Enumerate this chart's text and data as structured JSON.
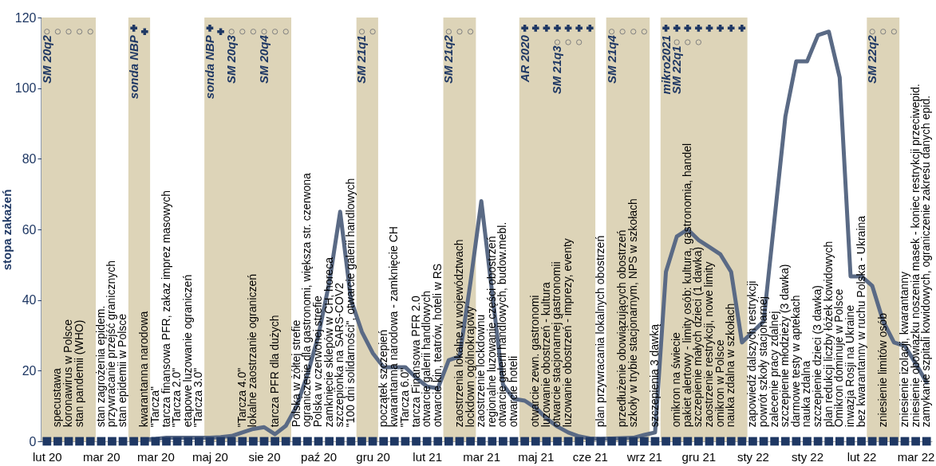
{
  "chart_data": {
    "type": "line",
    "ylabel": "stopa zakażeń",
    "categories": [
      "lut 20",
      null,
      null,
      null,
      null,
      "mar 20",
      null,
      null,
      null,
      null,
      "mar 20",
      null,
      null,
      null,
      null,
      "maj 20",
      null,
      null,
      null,
      null,
      "sie 20",
      null,
      null,
      null,
      null,
      "paź 20",
      null,
      null,
      null,
      null,
      "gru 20",
      null,
      null,
      null,
      null,
      "lut 21",
      null,
      null,
      null,
      null,
      "mar 21",
      null,
      null,
      null,
      null,
      "maj 21",
      null,
      null,
      null,
      null,
      "cze 21",
      null,
      null,
      null,
      null,
      "wrz 21",
      null,
      null,
      null,
      null,
      "gru 21",
      null,
      null,
      null,
      null,
      "sty 22",
      null,
      null,
      null,
      null,
      "sty 22",
      null,
      null,
      null,
      null,
      "lut 22",
      null,
      null,
      null,
      null,
      "mar 22",
      null
    ],
    "ylim": [
      0,
      120
    ],
    "yticks": [
      0,
      20,
      40,
      60,
      80,
      100,
      120
    ],
    "grid": false,
    "series": [
      {
        "type": "line",
        "color": "#5a6a85",
        "line_style": "solid",
        "values": [
          null,
          null,
          null,
          null,
          null,
          null,
          null,
          null,
          null,
          0.5,
          0.7,
          1,
          1,
          1,
          1,
          1,
          1.2,
          1.5,
          2.5,
          3.5,
          4,
          2,
          4.4,
          10,
          19,
          30,
          45,
          65,
          40,
          31,
          25,
          21,
          21,
          21,
          18,
          15.5,
          15,
          23,
          24,
          45,
          68,
          42,
          16,
          12,
          11.5,
          9.5,
          6.5,
          4.2,
          2.5,
          1.4,
          0.8,
          0.7,
          0.8,
          0.9,
          1,
          1.8,
          2.5,
          48,
          58,
          60,
          57,
          55,
          53,
          48,
          28,
          31,
          34,
          63,
          92,
          107.6,
          107.6,
          115,
          116,
          103,
          46.7,
          46.7,
          44,
          34,
          28,
          27,
          22,
          16.7
        ]
      },
      {
        "type": "scatter",
        "marker": "square",
        "color": "#1f3864",
        "values": [
          0,
          0,
          0,
          0,
          0,
          0,
          0,
          0,
          0,
          0,
          0,
          0,
          0,
          0,
          0,
          0,
          0,
          0,
          0,
          0,
          0,
          0,
          0,
          0,
          0,
          0,
          0,
          0,
          0,
          0,
          0,
          0,
          0,
          0,
          0,
          0,
          0,
          0,
          0,
          0,
          0,
          0,
          0,
          0,
          0,
          0,
          0,
          0,
          0,
          0,
          0,
          0,
          0,
          0,
          0,
          0,
          0,
          0,
          0,
          0,
          0,
          0,
          0,
          0,
          0,
          0,
          0,
          0,
          0,
          0,
          0,
          0,
          0,
          0,
          0,
          0,
          0,
          0,
          0,
          0,
          0,
          0
        ]
      },
      {
        "type": "scatter",
        "marker": "circle",
        "color": "#808080",
        "values": [
          116,
          116,
          116,
          116,
          116,
          null,
          null,
          null,
          null,
          null,
          null,
          null,
          null,
          null,
          null,
          null,
          null,
          116,
          116,
          116,
          116,
          116,
          116,
          null,
          null,
          null,
          null,
          null,
          null,
          116,
          116,
          null,
          null,
          null,
          null,
          null,
          null,
          116,
          116,
          116,
          null,
          null,
          null,
          null,
          null,
          null,
          null,
          113,
          113,
          113,
          null,
          null,
          116,
          116,
          116,
          116,
          null,
          null,
          113,
          113,
          113,
          null,
          null,
          null,
          null,
          null,
          null,
          null,
          null,
          null,
          null,
          null,
          null,
          null,
          null,
          null,
          116,
          116,
          116,
          null,
          null,
          null
        ]
      },
      {
        "type": "scatter",
        "marker": "cross",
        "color": "#1f3864",
        "values": [
          null,
          null,
          null,
          null,
          null,
          null,
          null,
          null,
          117,
          116,
          null,
          null,
          null,
          null,
          null,
          117,
          116,
          null,
          null,
          null,
          null,
          null,
          null,
          null,
          null,
          null,
          null,
          null,
          null,
          null,
          null,
          null,
          null,
          null,
          null,
          null,
          null,
          null,
          null,
          null,
          null,
          null,
          null,
          null,
          117,
          117,
          117,
          117,
          117,
          117,
          117,
          null,
          null,
          null,
          null,
          null,
          null,
          117,
          117,
          117,
          117,
          117,
          117,
          117,
          117,
          null,
          null,
          null,
          null,
          null,
          null,
          null,
          null,
          null,
          null,
          null,
          null,
          null,
          null,
          null,
          null,
          null
        ]
      }
    ],
    "annotations": [
      "SM 20q2",
      "sonda NBP",
      "sonda NBP",
      "SM 20q3",
      "SM 20q4",
      "SM 21q1",
      "SM 21q2",
      "AR 2020",
      "SM 21q3",
      "SM 21q4",
      "mikro2021",
      "SM 22q1",
      "SM 22q2",
      "specustawa",
      "koronawirus w Polsce",
      "stan pandemii (WHO)",
      "stan zagrożenia epidem.",
      "przywracanie przejść granicznych",
      "stan epidemii w Polsce",
      "kwarantanna narodowa",
      "\"Tarcza\"",
      "tarcza finansowa PFR, zakaz imprez masowych",
      "\"Tarcza 2.0\"",
      "etapowe luzowanie ograniczeń",
      "\"Tarcza 3.0\"",
      "\"Tarcza 4.0\"",
      "lokalne zaostrzanie ograniczeń",
      "tarcza PFR dla dużych",
      "Polska w żółtej strefie",
      "ograniczenie dla gastronomi, większa str. czerwona",
      "Polska w czerwonej strefie",
      "zamknięcie sklepów w CH, horeca",
      "szczepionka na SARS-COV2",
      "\"100 dni solidarności\", otwarcie galerii handlowych",
      "początek szczepień",
      "kwarantanna narodowa - zamknięcie CH",
      "\"Tarcza 6.0\"",
      "tarcza Finansowa PFR 2.0",
      "otwarcie galerii handlowych",
      "otwarcie kin, teatrów, hoteli w RS",
      "zaostrzenia lokalne w województwach",
      "lockdown ogólnokrajowy",
      "zaostrzenie lockdownu",
      "regionalne luzowanie części obostrzeń",
      "otwarcie galerii handlowych, budow.mebl.",
      "otwarcie hoteli",
      "otwarcie zewn. gastronomi",
      "luzowanie obostrzeń - kultura",
      "otwarcie stacjonarnej gastronomii",
      "luzowanie obostrzeń - imprezy, eventy",
      "plan przywracania lokalnych obostrzeń",
      "przedłużenie obowiązujących obostrzeń",
      "szkoły w trybie stacjonarnym, NPS w szkołach",
      "szczepienia 3 dawką",
      "omikron na świecie",
      "pakiet alertowy - limity osób: kultura, gastronomia, handel",
      "szczepienie małych dzieci (1 dawka)",
      "zaostrzenie restrykcji, nowe limity",
      "omikron w Polsce",
      "nauka zdalna w szkołach",
      "zapowiedź dalszych restrykcji",
      "powrót szkoły stacjonarnej",
      "zalecenie pracy zdalnej",
      "szczepienie młodzieży (3 dawka)",
      "darmowe testy w aptekach",
      "nauka zdalna",
      "szczepienie dzieci (3 dawka)",
      "plan redukcji liczby łóżek kowidowych",
      "Omikron dominuje w Polsce",
      "inwazja Rosji na Ukraine",
      "bez kwarantanny w ruchu Polska - Ukraina",
      "zniesienie limitów osób",
      "zniesienie izolacji, kwarantanny",
      "zniesienie obowiązku noszenia masek - koniec restrykcji przeciwepid.",
      "zamykanie szpitali kowidowych, ograniczenie zakresu danych epid."
    ]
  }
}
